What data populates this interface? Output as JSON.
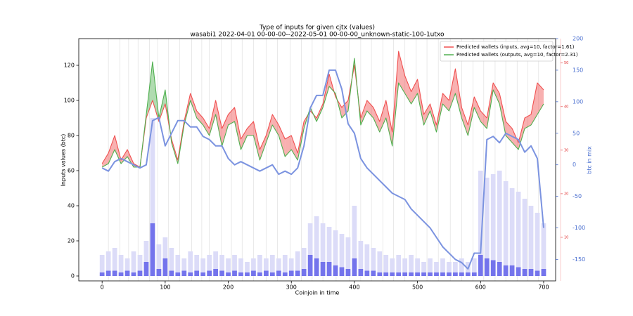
{
  "chart_data": {
    "type": "line",
    "title": "Type of inputs for given cjtx (values)",
    "subtitle": "wasabi1 2022-04-01 00-00-00--2022-05-01 00-00-00_unknown-static-100-1utxo",
    "xlabel": "Coinjoin in time",
    "ylabel": "Inputs values (btc)",
    "y2label": "btc in mix",
    "x": [
      0,
      10,
      20,
      30,
      40,
      50,
      60,
      70,
      80,
      90,
      100,
      110,
      120,
      130,
      140,
      150,
      160,
      170,
      180,
      190,
      200,
      210,
      220,
      230,
      240,
      250,
      260,
      270,
      280,
      290,
      300,
      310,
      320,
      330,
      340,
      350,
      360,
      370,
      380,
      390,
      400,
      410,
      420,
      430,
      440,
      450,
      460,
      470,
      480,
      490,
      500,
      510,
      520,
      530,
      540,
      550,
      560,
      570,
      580,
      590,
      600,
      610,
      620,
      630,
      640,
      650,
      660,
      670,
      680,
      690,
      700
    ],
    "xlim": [
      -37,
      719
    ],
    "xticks": [
      0,
      100,
      200,
      300,
      400,
      500,
      600,
      700
    ],
    "ylim": [
      -2.8,
      135.2
    ],
    "yticks": [
      0,
      20,
      40,
      60,
      80,
      100,
      120
    ],
    "y2lim": [
      -184,
      200
    ],
    "y2ticks": [
      -150,
      -100,
      -50,
      0,
      50,
      100,
      150,
      200
    ],
    "y2color": "#4a6fd0",
    "y3lim": [
      0,
      55.6
    ],
    "y3ticks": [
      10,
      20,
      30,
      40,
      50
    ],
    "y3color": "#e03030",
    "legend": "upper right",
    "vlines": [
      10,
      28,
      42,
      57,
      75,
      88,
      105,
      123,
      142,
      158,
      170,
      189,
      205,
      222,
      240,
      260,
      278,
      298,
      316,
      333,
      350,
      371,
      392,
      410,
      427,
      445,
      462,
      480,
      498,
      515,
      533,
      552,
      570,
      588,
      605,
      623,
      640,
      658,
      675,
      692
    ],
    "bars": [
      {
        "color": "#dcdcf8",
        "values": [
          12,
          14,
          16,
          12,
          10,
          14,
          12,
          20,
          90,
          18,
          22,
          16,
          12,
          10,
          14,
          12,
          10,
          12,
          14,
          12,
          10,
          12,
          10,
          8,
          10,
          12,
          10,
          12,
          10,
          12,
          10,
          14,
          16,
          30,
          34,
          30,
          28,
          26,
          24,
          22,
          40,
          20,
          18,
          16,
          14,
          12,
          10,
          12,
          10,
          12,
          10,
          8,
          10,
          8,
          10,
          8,
          8,
          10,
          8,
          10,
          60,
          56,
          58,
          60,
          54,
          50,
          48,
          44,
          40,
          36,
          30
        ]
      },
      {
        "color": "#7474ec",
        "values": [
          2,
          3,
          3,
          2,
          3,
          2,
          3,
          8,
          30,
          4,
          10,
          3,
          2,
          3,
          2,
          3,
          2,
          3,
          4,
          3,
          2,
          3,
          2,
          2,
          3,
          2,
          3,
          2,
          3,
          2,
          3,
          3,
          4,
          12,
          10,
          8,
          8,
          6,
          5,
          4,
          10,
          4,
          3,
          3,
          2,
          2,
          2,
          2,
          2,
          2,
          2,
          2,
          2,
          2,
          2,
          2,
          2,
          2,
          2,
          2,
          12,
          10,
          9,
          8,
          6,
          6,
          5,
          4,
          4,
          3,
          4
        ]
      }
    ],
    "series": [
      {
        "name": "Predicted wallets (inputs, avg=10, factor=1.61)",
        "color": "#f05050",
        "values": [
          64,
          70,
          80,
          66,
          72,
          64,
          62,
          90,
          100,
          88,
          98,
          78,
          66,
          88,
          104,
          94,
          90,
          84,
          100,
          84,
          92,
          96,
          78,
          84,
          88,
          72,
          80,
          92,
          86,
          78,
          80,
          70,
          88,
          94,
          90,
          98,
          115,
          102,
          96,
          100,
          120,
          90,
          100,
          96,
          88,
          100,
          82,
          128,
          114,
          105,
          112,
          92,
          98,
          86,
          104,
          100,
          118,
          96,
          86,
          102,
          94,
          90,
          110,
          104,
          88,
          84,
          76,
          90,
          92,
          110,
          106
        ]
      },
      {
        "name": "Predicted wallets (outputs, avg=10, factor=2.31)",
        "color": "#50b050",
        "values": [
          62,
          64,
          72,
          64,
          68,
          62,
          62,
          92,
          122,
          90,
          106,
          76,
          64,
          86,
          100,
          90,
          86,
          80,
          92,
          74,
          86,
          88,
          72,
          80,
          80,
          66,
          76,
          86,
          80,
          68,
          72,
          66,
          84,
          96,
          88,
          96,
          108,
          104,
          90,
          94,
          124,
          86,
          94,
          90,
          82,
          90,
          74,
          110,
          104,
          98,
          104,
          86,
          94,
          82,
          98,
          94,
          104,
          90,
          80,
          96,
          88,
          84,
          106,
          98,
          80,
          76,
          72,
          84,
          86,
          92,
          98
        ]
      },
      {
        "color": "#7b93e0",
        "axis": "y2",
        "values": [
          -5,
          -10,
          5,
          10,
          5,
          0,
          -5,
          0,
          70,
          75,
          30,
          50,
          70,
          70,
          60,
          60,
          45,
          40,
          30,
          30,
          10,
          0,
          5,
          0,
          -5,
          -10,
          -5,
          0,
          -15,
          -10,
          -15,
          -5,
          30,
          90,
          110,
          110,
          150,
          150,
          120,
          65,
          50,
          10,
          -5,
          -15,
          -25,
          -35,
          -45,
          -50,
          -55,
          -70,
          -80,
          -90,
          -100,
          -115,
          -130,
          -140,
          -150,
          -155,
          -165,
          -140,
          -140,
          40,
          45,
          35,
          50,
          45,
          40,
          20,
          30,
          10,
          -100
        ]
      }
    ]
  }
}
